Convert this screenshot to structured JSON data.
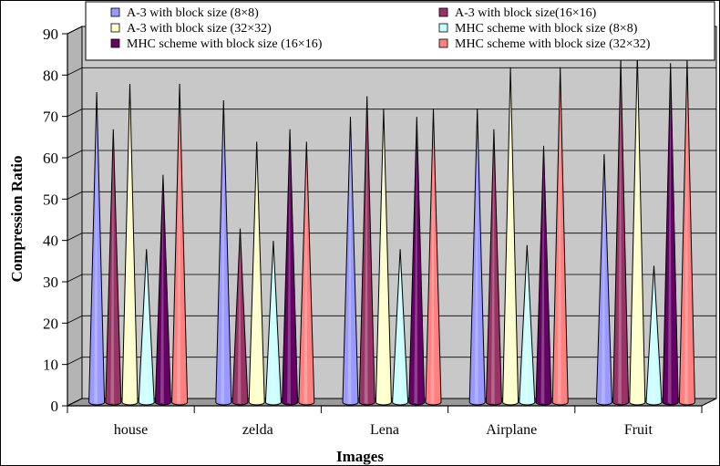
{
  "chart_data": {
    "type": "bar",
    "style": "3d-cone",
    "xlabel": "Images",
    "ylabel": "Compression Ratio",
    "categories": [
      "house",
      "zelda",
      "Lena",
      "Airplane",
      "Fruit"
    ],
    "ylim": [
      0,
      90
    ],
    "yticks": [
      0,
      10,
      20,
      30,
      40,
      50,
      60,
      70,
      80,
      90
    ],
    "grid": true,
    "legend_position": "top",
    "series": [
      {
        "name": "A-3 with block size (8×8)",
        "color": "#9999ff",
        "values": [
          75,
          73,
          69,
          71,
          60
        ]
      },
      {
        "name": "A-3 with block size(16×16)",
        "color": "#993366",
        "values": [
          66,
          42,
          74,
          66,
          83
        ]
      },
      {
        "name": "A-3 with block size (32×32)",
        "color": "#ffffcc",
        "values": [
          77,
          63,
          71,
          81,
          84
        ]
      },
      {
        "name": "MHC scheme with block size (8×8)",
        "color": "#ccffff",
        "values": [
          37,
          39,
          37,
          38,
          33
        ]
      },
      {
        "name": "MHC scheme with block size (16×16)",
        "color": "#660066",
        "values": [
          55,
          66,
          69,
          62,
          82
        ]
      },
      {
        "name": "MHC scheme with block size (32×32)",
        "color": "#ff8080",
        "values": [
          77,
          63,
          71,
          81,
          83
        ]
      }
    ]
  }
}
